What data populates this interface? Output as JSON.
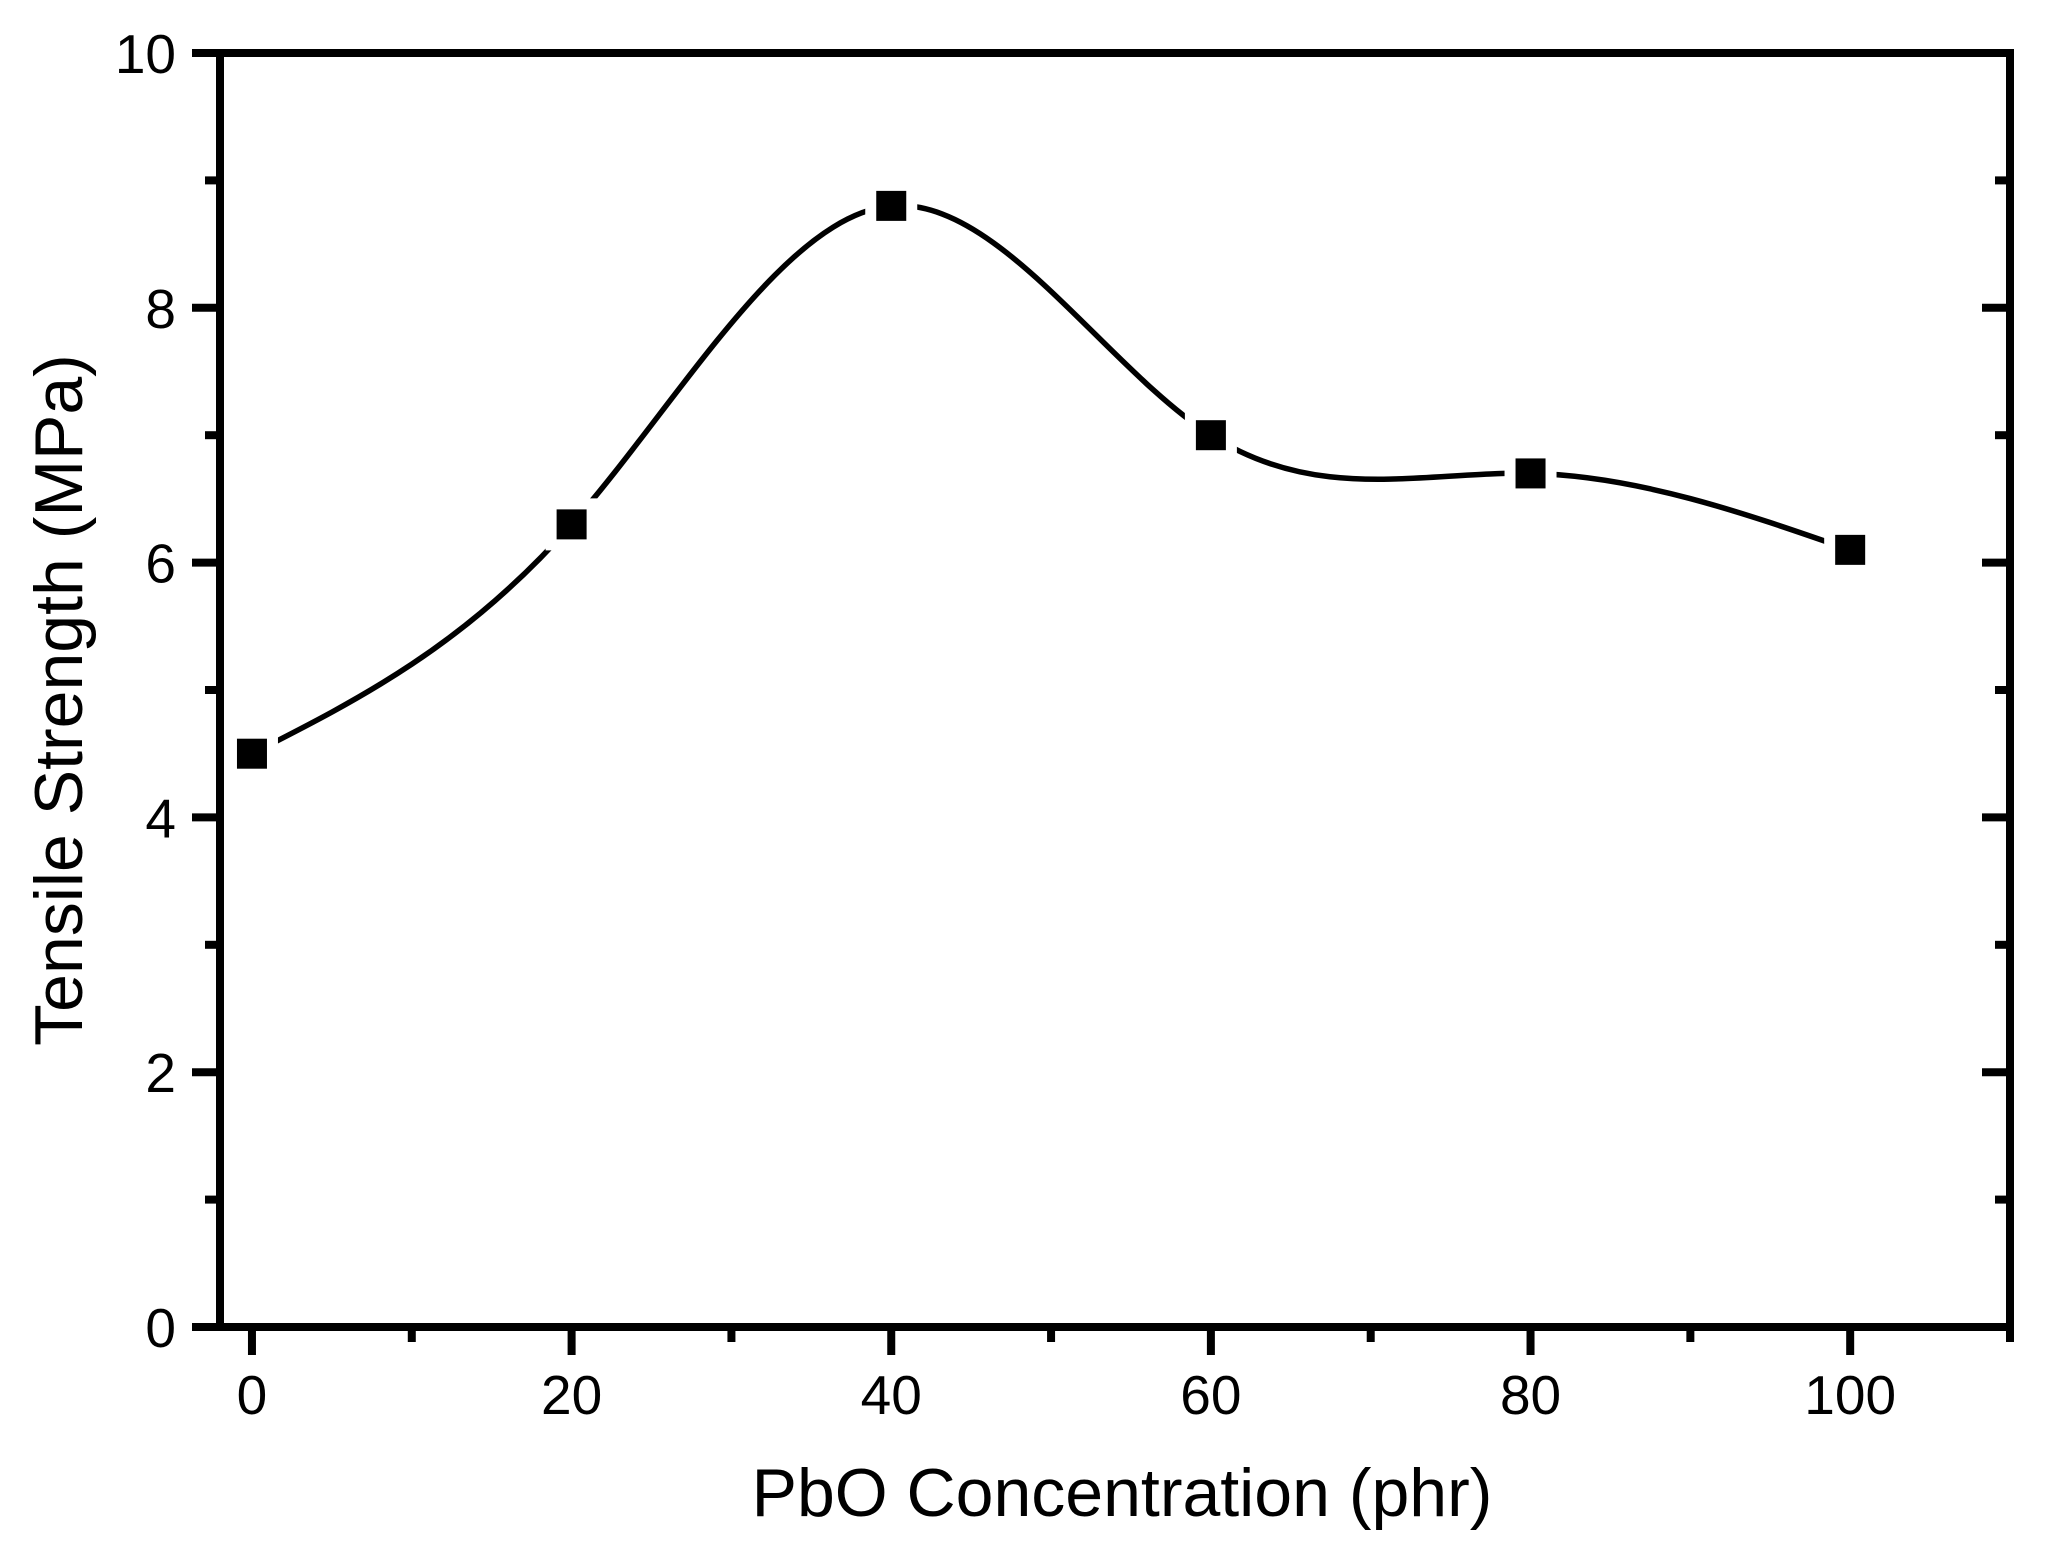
{
  "chart_data": {
    "type": "line",
    "title": "",
    "x": [
      0,
      20,
      40,
      60,
      80,
      100
    ],
    "y": [
      4.5,
      6.3,
      8.8,
      7.0,
      6.7,
      6.1
    ],
    "xlabel": "PbO Concentration (phr)",
    "ylabel": "Tensile Strength (MPa)",
    "xlim": [
      -2,
      110
    ],
    "ylim": [
      0,
      10
    ],
    "x_major_ticks": [
      0,
      20,
      40,
      60,
      80,
      100
    ],
    "x_minor_ticks": [
      10,
      30,
      50,
      70,
      90,
      110
    ],
    "y_major_ticks": [
      0,
      2,
      4,
      6,
      8,
      10
    ],
    "y_minor_ticks": [
      1,
      3,
      5,
      7,
      9
    ],
    "grid": false,
    "legend": false,
    "line_style": "smooth-cubic-spline",
    "marker": "filled-square",
    "colors": {
      "line": "#000000",
      "marker": "#000000",
      "axis": "#000000",
      "background": "#ffffff"
    }
  }
}
